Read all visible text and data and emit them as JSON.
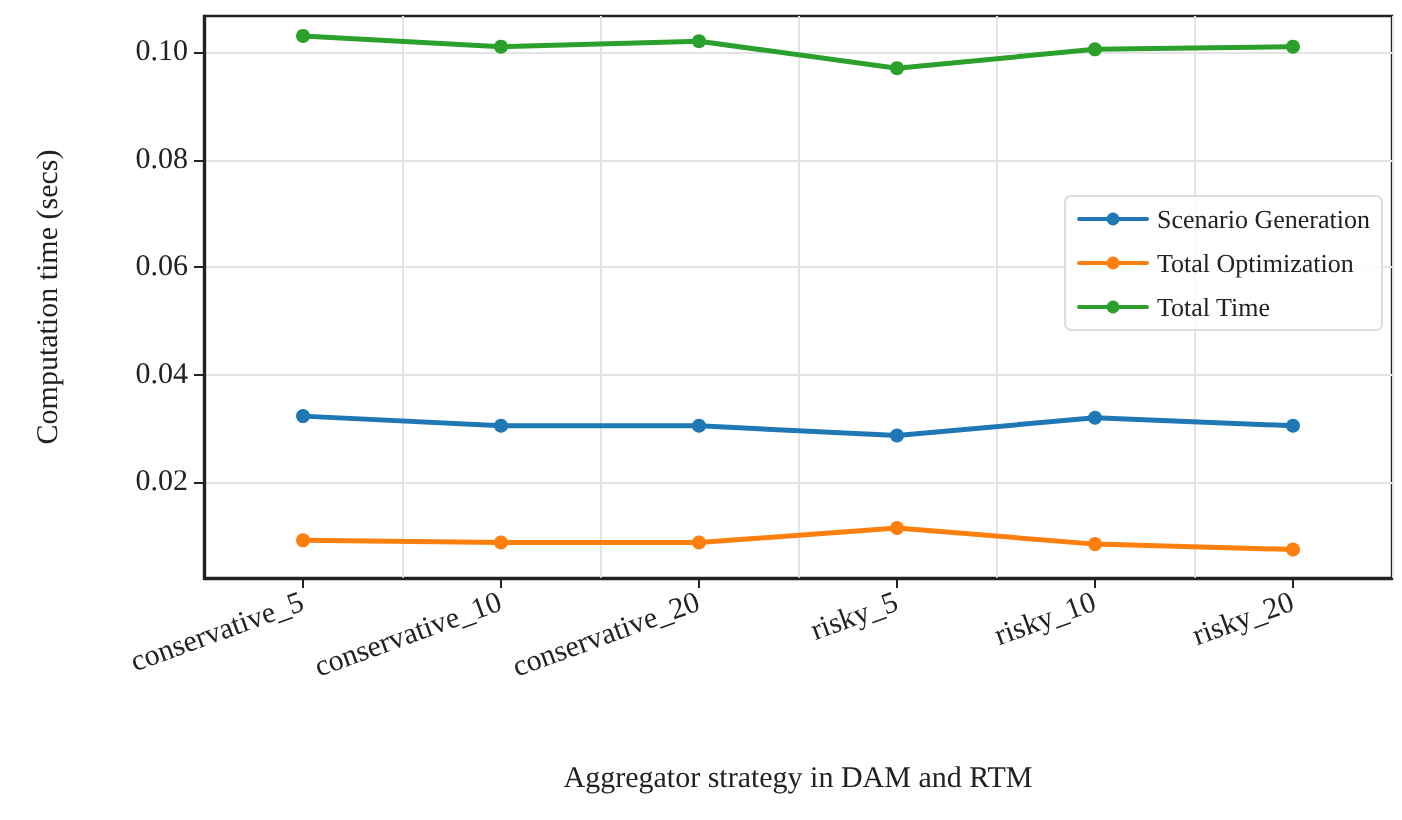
{
  "chart_data": {
    "type": "line",
    "xlabel": "Aggregator strategy in DAM and RTM",
    "ylabel": "Computation time (secs)",
    "categories": [
      "conservative_5",
      "conservative_10",
      "conservative_20",
      "risky_5",
      "risky_10",
      "risky_20"
    ],
    "series": [
      {
        "name": "Scenario Generation",
        "color": "#1f77b4",
        "values": [
          0.0323,
          0.0305,
          0.0305,
          0.0287,
          0.032,
          0.0305
        ]
      },
      {
        "name": "Total Optimization",
        "color": "#ff7f0e",
        "values": [
          0.0092,
          0.0088,
          0.0088,
          0.0115,
          0.0085,
          0.0075
        ]
      },
      {
        "name": "Total Time",
        "color": "#2ca02c",
        "values": [
          0.103,
          0.101,
          0.102,
          0.097,
          0.1005,
          0.101
        ]
      }
    ],
    "ylim": [
      0.0022,
      0.1067
    ],
    "yticks": [
      {
        "value": 0.02,
        "label": "0.02"
      },
      {
        "value": 0.04,
        "label": "0.04"
      },
      {
        "value": 0.06,
        "label": "0.06"
      },
      {
        "value": 0.08,
        "label": "0.08"
      },
      {
        "value": 0.1,
        "label": "0.10"
      }
    ],
    "grid": true,
    "legend": "right",
    "marker": "circle",
    "line_style": "solid"
  }
}
